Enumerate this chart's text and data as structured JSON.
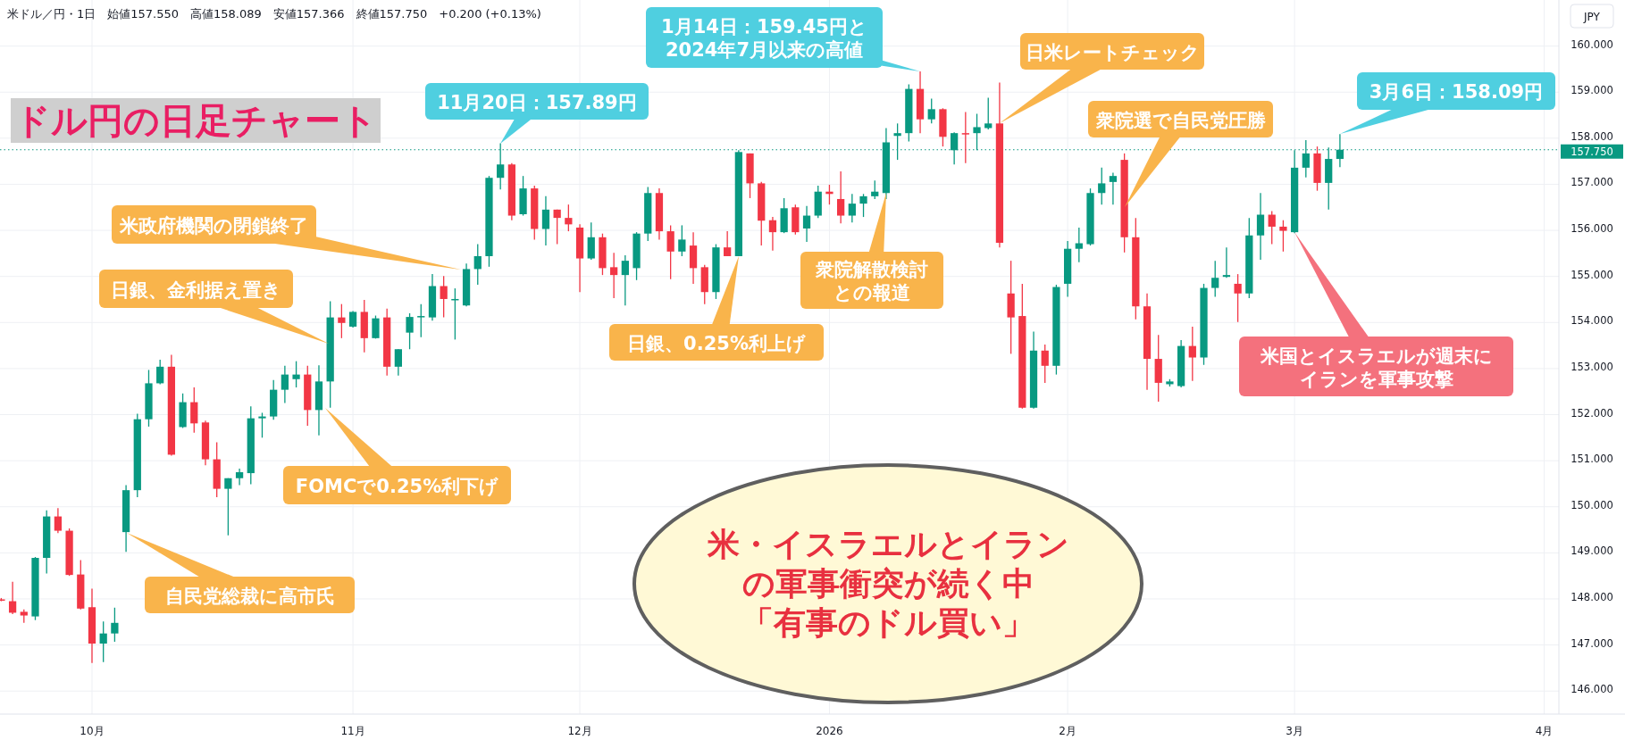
{
  "chart_data": {
    "type": "candlestick",
    "title": "ドル円の日足チャート",
    "subtitle": "米ドル／円・1日　始値157.550　高値158.089　安値157.366　終値157.750　+0.200 (+0.13%)",
    "ylabel": "JPY",
    "categories": [
      null,
      null,
      null,
      null,
      null,
      null,
      null,
      null,
      "10月",
      null,
      null,
      null,
      null,
      null,
      null,
      null,
      null,
      null,
      null,
      null,
      null,
      null,
      null,
      null,
      null,
      null,
      null,
      null,
      null,
      null,
      null,
      "11月",
      null,
      null,
      null,
      null,
      null,
      null,
      null,
      null,
      null,
      null,
      null,
      null,
      null,
      null,
      null,
      null,
      null,
      null,
      null,
      "12月",
      null,
      null,
      null,
      null,
      null,
      null,
      null,
      null,
      null,
      null,
      null,
      null,
      null,
      null,
      null,
      null,
      null,
      null,
      null,
      null,
      null,
      "2026",
      null,
      null,
      null,
      null,
      null,
      null,
      null,
      null,
      null,
      null,
      null,
      null,
      null,
      null,
      null,
      null,
      null,
      null,
      null,
      null,
      "2月",
      null,
      null,
      null,
      null,
      null,
      null,
      null,
      null,
      null,
      null,
      null,
      null,
      null,
      null,
      null,
      null,
      null,
      null,
      null,
      "3月",
      null,
      null,
      null,
      null,
      null,
      null,
      null,
      null,
      null,
      null,
      null,
      null,
      null,
      null,
      null,
      null,
      null,
      null,
      null,
      null,
      null,
      "4月",
      null
    ],
    "ohlc": [
      [
        147.99,
        148.02,
        147.95,
        147.98
      ],
      [
        147.95,
        148.37,
        147.67,
        147.7
      ],
      [
        147.72,
        147.77,
        147.48,
        147.64
      ],
      [
        147.62,
        148.91,
        147.54,
        148.89
      ],
      [
        148.89,
        149.92,
        148.55,
        149.79
      ],
      [
        149.79,
        149.97,
        149.43,
        149.48
      ],
      [
        149.48,
        149.53,
        148.5,
        148.52
      ],
      [
        148.53,
        148.84,
        147.77,
        147.79
      ],
      [
        147.82,
        148.22,
        146.61,
        147.03
      ],
      [
        147.03,
        147.51,
        146.63,
        147.25
      ],
      [
        147.25,
        147.81,
        147.07,
        147.48
      ],
      [
        149.45,
        150.47,
        149.02,
        150.36
      ],
      [
        150.36,
        152.02,
        150.21,
        151.9
      ],
      [
        151.9,
        152.97,
        151.74,
        152.68
      ],
      [
        152.68,
        153.19,
        152.66,
        153.04
      ],
      [
        153.04,
        153.3,
        151.11,
        151.13
      ],
      [
        151.73,
        152.46,
        151.71,
        152.27
      ],
      [
        152.27,
        152.59,
        151.61,
        151.81
      ],
      [
        151.83,
        151.87,
        150.9,
        151.03
      ],
      [
        151.03,
        151.4,
        150.21,
        150.39
      ],
      [
        150.39,
        150.62,
        149.38,
        150.62
      ],
      [
        150.62,
        150.83,
        150.47,
        150.75
      ],
      [
        150.73,
        152.18,
        150.49,
        151.92
      ],
      [
        151.92,
        152.04,
        151.5,
        151.96
      ],
      [
        151.96,
        152.75,
        151.89,
        152.54
      ],
      [
        152.54,
        153.06,
        152.25,
        152.87
      ],
      [
        152.77,
        153.16,
        152.59,
        152.87
      ],
      [
        152.87,
        153.06,
        151.76,
        152.1
      ],
      [
        152.1,
        153.07,
        151.55,
        152.72
      ],
      [
        152.72,
        154.46,
        152.15,
        154.11
      ],
      [
        154.11,
        154.4,
        153.66,
        153.99
      ],
      [
        153.91,
        154.25,
        153.89,
        154.23
      ],
      [
        154.23,
        154.49,
        153.35,
        153.66
      ],
      [
        153.66,
        154.15,
        153.65,
        154.09
      ],
      [
        154.11,
        154.3,
        152.85,
        153.04
      ],
      [
        153.04,
        153.42,
        152.85,
        153.42
      ],
      [
        153.78,
        154.2,
        153.42,
        154.12
      ],
      [
        154.13,
        154.4,
        153.68,
        154.14
      ],
      [
        154.11,
        155.05,
        154.04,
        154.79
      ],
      [
        154.79,
        155.01,
        154.11,
        154.51
      ],
      [
        154.5,
        154.74,
        153.63,
        154.51
      ],
      [
        154.37,
        155.28,
        154.35,
        155.16
      ],
      [
        155.16,
        155.7,
        154.82,
        155.44
      ],
      [
        155.44,
        157.18,
        155.21,
        157.14
      ],
      [
        157.14,
        157.89,
        156.89,
        157.43
      ],
      [
        157.43,
        157.46,
        156.22,
        156.32
      ],
      [
        156.35,
        157.18,
        156.32,
        156.91
      ],
      [
        156.91,
        156.97,
        155.8,
        156.03
      ],
      [
        156.03,
        156.74,
        155.67,
        156.45
      ],
      [
        156.45,
        156.45,
        155.7,
        156.27
      ],
      [
        156.27,
        156.56,
        155.98,
        156.13
      ],
      [
        156.06,
        156.13,
        154.66,
        155.39
      ],
      [
        155.39,
        156.17,
        155.36,
        155.85
      ],
      [
        155.85,
        155.93,
        155.03,
        155.18
      ],
      [
        155.2,
        155.51,
        154.53,
        155.03
      ],
      [
        155.03,
        155.46,
        154.37,
        155.34
      ],
      [
        155.18,
        155.96,
        154.92,
        155.93
      ],
      [
        155.93,
        156.94,
        155.77,
        156.81
      ],
      [
        156.81,
        156.91,
        155.8,
        155.98
      ],
      [
        155.98,
        156.11,
        154.94,
        155.54
      ],
      [
        155.54,
        156.11,
        155.44,
        155.8
      ],
      [
        155.67,
        155.96,
        154.84,
        155.18
      ],
      [
        155.2,
        155.25,
        154.4,
        154.66
      ],
      [
        154.66,
        155.7,
        154.51,
        155.63
      ],
      [
        155.63,
        155.98,
        155.44,
        155.44
      ],
      [
        155.44,
        157.74,
        155.44,
        157.7
      ],
      [
        157.67,
        157.67,
        156.7,
        157.02
      ],
      [
        157.02,
        157.05,
        155.67,
        156.21
      ],
      [
        156.22,
        156.29,
        155.56,
        155.96
      ],
      [
        155.96,
        156.7,
        155.94,
        156.48
      ],
      [
        156.5,
        156.56,
        155.91,
        155.96
      ],
      [
        156.04,
        156.53,
        155.75,
        156.32
      ],
      [
        156.32,
        156.97,
        156.27,
        156.84
      ],
      [
        156.84,
        156.99,
        156.56,
        156.79
      ],
      [
        156.68,
        157.28,
        156.15,
        156.32
      ],
      [
        156.32,
        156.79,
        156.17,
        156.58
      ],
      [
        156.58,
        156.79,
        156.29,
        156.74
      ],
      [
        156.74,
        157.08,
        156.68,
        156.84
      ],
      [
        156.81,
        158.22,
        156.68,
        157.91
      ],
      [
        158.05,
        158.32,
        157.53,
        158.11
      ],
      [
        158.11,
        159.17,
        157.93,
        159.07
      ],
      [
        159.07,
        159.45,
        158.11,
        158.41
      ],
      [
        158.41,
        158.86,
        158.32,
        158.63
      ],
      [
        158.63,
        158.65,
        157.82,
        158.03
      ],
      [
        157.74,
        158.13,
        157.43,
        158.11
      ],
      [
        158.11,
        158.57,
        157.46,
        158.09
      ],
      [
        158.11,
        158.53,
        157.74,
        158.24
      ],
      [
        158.22,
        158.88,
        158.19,
        158.32
      ],
      [
        158.32,
        159.21,
        155.63,
        155.73
      ],
      [
        154.63,
        155.34,
        153.32,
        154.11
      ],
      [
        154.14,
        154.84,
        152.13,
        152.15
      ],
      [
        152.15,
        153.8,
        152.13,
        153.39
      ],
      [
        153.39,
        153.52,
        152.69,
        153.06
      ],
      [
        153.06,
        154.82,
        152.87,
        154.77
      ],
      [
        154.84,
        155.77,
        154.56,
        155.6
      ],
      [
        155.6,
        156.06,
        155.31,
        155.72
      ],
      [
        155.7,
        156.91,
        155.67,
        156.81
      ],
      [
        156.81,
        157.36,
        156.56,
        157.02
      ],
      [
        157.05,
        157.25,
        156.56,
        157.18
      ],
      [
        157.53,
        157.67,
        155.52,
        155.85
      ],
      [
        155.85,
        156.27,
        154.07,
        154.35
      ],
      [
        154.35,
        154.63,
        152.54,
        153.21
      ],
      [
        153.21,
        153.73,
        152.28,
        152.69
      ],
      [
        152.66,
        152.77,
        152.61,
        152.72
      ],
      [
        152.62,
        153.62,
        152.59,
        153.49
      ],
      [
        153.49,
        153.91,
        152.73,
        153.24
      ],
      [
        153.24,
        154.84,
        153.08,
        154.75
      ],
      [
        154.75,
        155.34,
        154.56,
        154.97
      ],
      [
        154.99,
        155.63,
        154.97,
        155.03
      ],
      [
        154.84,
        155.05,
        154.01,
        154.63
      ],
      [
        154.63,
        156.27,
        154.53,
        155.89
      ],
      [
        155.89,
        156.81,
        155.36,
        156.34
      ],
      [
        156.34,
        156.42,
        155.7,
        156.08
      ],
      [
        156.08,
        156.22,
        155.54,
        155.99
      ],
      [
        155.96,
        157.74,
        155.94,
        157.36
      ],
      [
        157.36,
        157.96,
        157.15,
        157.67
      ],
      [
        157.67,
        157.82,
        156.86,
        157.03
      ],
      [
        157.03,
        157.8,
        156.45,
        157.55
      ],
      [
        157.55,
        158.09,
        157.37,
        157.75
      ],
      null,
      null,
      null,
      null,
      null,
      null,
      null,
      null,
      null,
      null,
      null,
      null,
      null,
      null,
      null,
      null,
      null,
      null,
      null
    ],
    "ylim": [
      145.5,
      161.0
    ],
    "yticks": [
      {
        "value": 146,
        "label": "146.000"
      },
      {
        "value": 147,
        "label": "147.000"
      },
      {
        "value": 148,
        "label": "148.000"
      },
      {
        "value": 149,
        "label": "149.000"
      },
      {
        "value": 150,
        "label": "150.000"
      },
      {
        "value": 151,
        "label": "151.000"
      },
      {
        "value": 152,
        "label": "152.000"
      },
      {
        "value": 153,
        "label": "153.000"
      },
      {
        "value": 154,
        "label": "154.000"
      },
      {
        "value": 155,
        "label": "155.000"
      },
      {
        "value": 156,
        "label": "156.000"
      },
      {
        "value": 157,
        "label": "157.000"
      },
      {
        "value": 158,
        "label": "158.000"
      },
      {
        "value": 159,
        "label": "159.000"
      },
      {
        "value": 160,
        "label": "160.000"
      }
    ],
    "grid": true,
    "ref_lines": [
      {
        "axis": "y",
        "value": 157.75,
        "label": "157.750",
        "color": "#089981",
        "line_style": "dotted"
      }
    ],
    "annotations": [
      "自民党総裁に高市氏",
      "日銀、金利据え置き",
      "米政府機関の閉鎖終了",
      "FOMCで0.25%利下げ",
      "11月20日：157.89円",
      "1月14日：159.45円と2024年7月以来の高値",
      "日銀、0.25%利上げ",
      "衆院解散検討との報道",
      "日米レートチェック",
      "衆院選で自民党圧勝",
      "3月6日：158.09円",
      "米国とイスラエルが週末にイランを軍事攻撃",
      "米・イスラエルとイランの軍事衝突が続く中「有事のドル買い」"
    ]
  }
}
